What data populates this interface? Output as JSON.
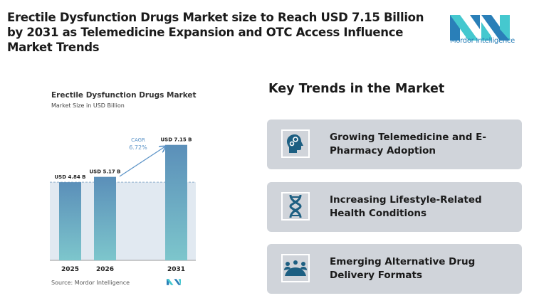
{
  "title": "Erectile Dysfunction Drugs Market size to Reach USD 7.15 Billion by 2031 as Telemedicine Expansion and OTC Access Influence Market Trends",
  "logo": {
    "text": "Mordor Intelligence",
    "colors": [
      "#2a7fb8",
      "#45c8cf"
    ]
  },
  "chart_data": {
    "type": "bar",
    "title": "Erectile Dysfunction Drugs Market",
    "subtitle": "Market Size in USD Billion",
    "categories": [
      "2025",
      "2026",
      "2031"
    ],
    "values": [
      4.84,
      5.17,
      7.15
    ],
    "data_labels": [
      "USD 4.84 B",
      "USD 5.17 B",
      "USD 7.15 B"
    ],
    "annotation": {
      "label": "CAGR",
      "value": "6.72%"
    },
    "ylim": [
      0,
      7.5
    ],
    "grid": false,
    "source": "Source: Mordor Intelligence",
    "colors": {
      "bar_top": "#5b8fb9",
      "bar_bottom": "#7dc6cc",
      "annotation": "#5b93c7"
    }
  },
  "key_trends": {
    "title": "Key Trends in the Market",
    "items": [
      {
        "label": "Growing Telemedicine and E-Pharmacy Adoption",
        "icon": "head-gears-icon"
      },
      {
        "label": "Increasing Lifestyle-Related Health Conditions",
        "icon": "dna-icon"
      },
      {
        "label": "Emerging Alternative Drug Delivery Formats",
        "icon": "group-icon"
      }
    ]
  }
}
